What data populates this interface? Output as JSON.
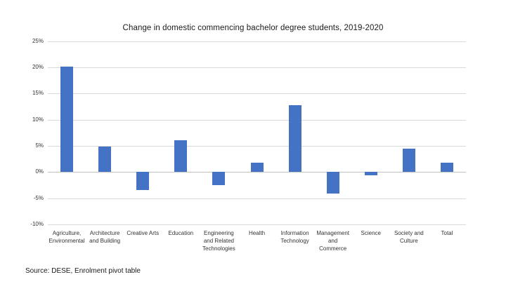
{
  "chart_data": {
    "type": "bar",
    "title": "Change in domestic commencing bachelor degree students, 2019-2020",
    "categories": [
      "Agriculture,\nEnvironmental",
      "Architecture\nand Building",
      "Creative Arts",
      "Education",
      "Engineering\nand Related\nTechnologies",
      "Health",
      "Information\nTechnology",
      "Management\nand\nCommerce",
      "Science",
      "Society and\nCulture",
      "Total"
    ],
    "values": [
      20.1,
      4.9,
      -3.5,
      6.1,
      -2.5,
      1.8,
      12.7,
      -4.1,
      -0.6,
      4.5,
      1.8
    ],
    "xlabel": "",
    "ylabel": "",
    "ylim": [
      -10,
      25
    ],
    "ytick_step": 5,
    "ytick_labels": [
      "25%",
      "20%",
      "15%",
      "10%",
      "5%",
      "0%",
      "-5%",
      "-10%"
    ],
    "grid": true,
    "legend": false,
    "bar_color": "#4472C4",
    "gridline_color": "#D9D9D9",
    "zero_line_color": "#BFBFBF"
  },
  "source_note": "Source: DESE, Enrolment pivot table"
}
